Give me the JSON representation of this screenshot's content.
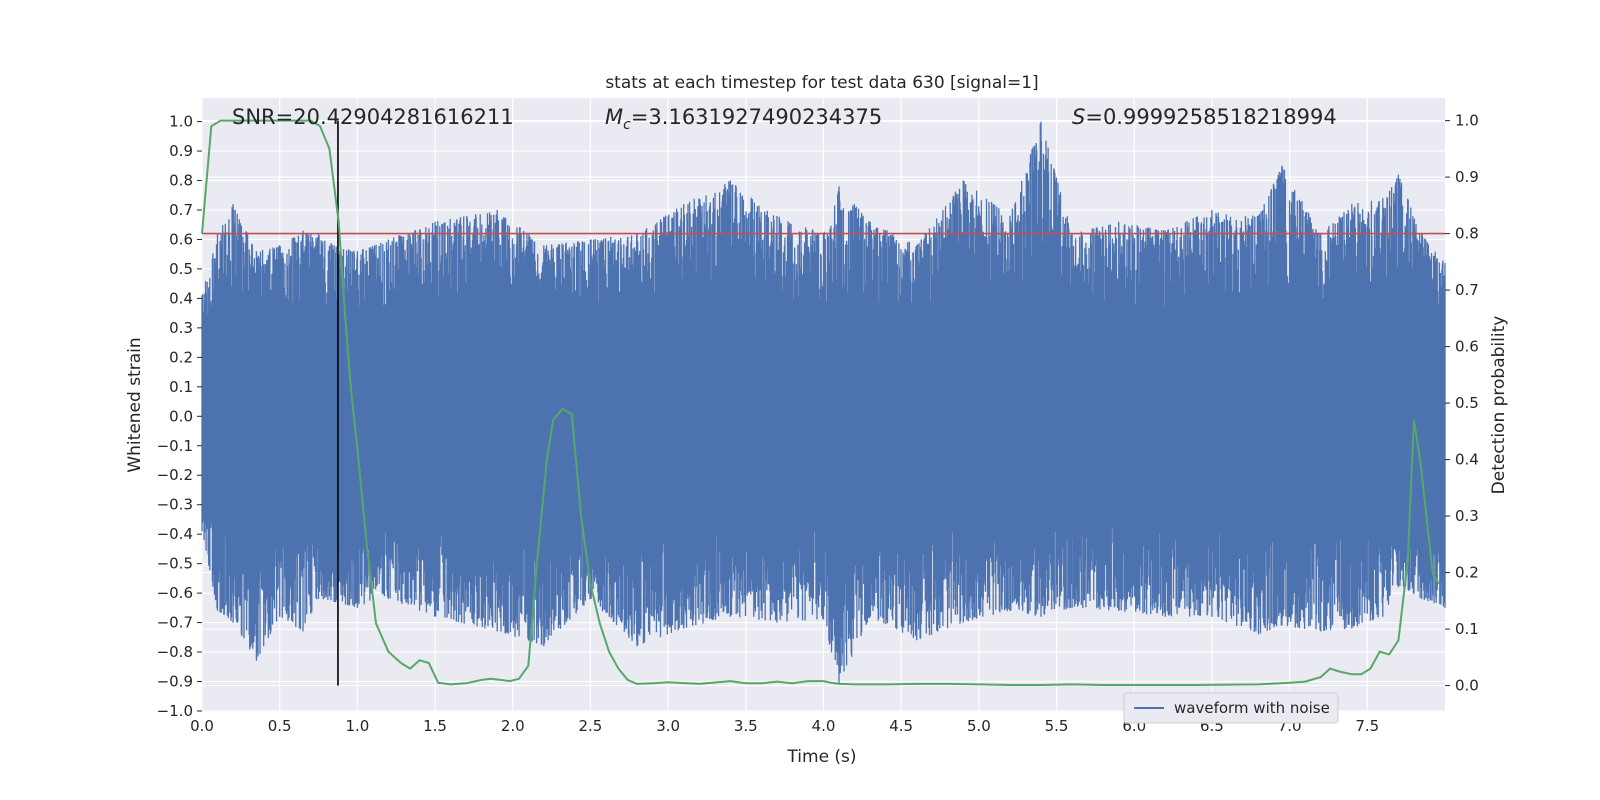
{
  "chart_data": {
    "type": "line",
    "title": "stats at each timestep for test data 630 [signal=1]",
    "xlabel": "Time (s)",
    "ylabel": "Whitened strain",
    "ylabel_right": "Detection probability",
    "xlim": [
      0.0,
      8.0
    ],
    "ylim": [
      -1.0,
      1.08
    ],
    "ylim_right": [
      -0.045,
      1.04
    ],
    "x_ticks": [
      "0.0",
      "0.5",
      "1.0",
      "1.5",
      "2.0",
      "2.5",
      "3.0",
      "3.5",
      "4.0",
      "4.5",
      "5.0",
      "5.5",
      "6.0",
      "6.5",
      "7.0",
      "7.5"
    ],
    "y_ticks": [
      "1.0",
      "0.9",
      "0.8",
      "0.7",
      "0.6",
      "0.5",
      "0.4",
      "0.3",
      "0.2",
      "0.1",
      "0.0",
      "−0.1",
      "−0.2",
      "−0.3",
      "−0.4",
      "−0.5",
      "−0.6",
      "−0.7",
      "−0.8",
      "−0.9",
      "−1.0"
    ],
    "y_right_ticks": [
      "1.0",
      "0.9",
      "0.8",
      "0.7",
      "0.6",
      "0.5",
      "0.4",
      "0.3",
      "0.2",
      "0.1",
      "0.0"
    ],
    "grid": true,
    "legend_position": "lower-right",
    "annotations": {
      "snr": "SNR=20.42904281616211",
      "mc_symbol": "M",
      "mc_sub": "c",
      "mc_value": "=3.1631927490234375",
      "s_symbol": "S",
      "s_value": "=0.9999258518218994"
    },
    "threshold_line": {
      "y_right": 0.8,
      "color": "#c44e52"
    },
    "marker_line": {
      "x": 0.875,
      "y_right_from": 0.0,
      "y_right_to": 1.0,
      "color": "#000000"
    },
    "series": [
      {
        "name": "waveform with noise",
        "axis": "left",
        "color": "#4c72b0",
        "envelope": {
          "x": [
            0.0,
            0.1,
            0.2,
            0.35,
            0.5,
            0.65,
            0.75,
            0.85,
            1.0,
            1.2,
            1.5,
            1.9,
            2.2,
            2.5,
            2.8,
            3.1,
            3.4,
            3.7,
            4.0,
            4.1,
            4.3,
            4.6,
            4.9,
            5.2,
            5.4,
            5.6,
            5.9,
            6.2,
            6.5,
            6.8,
            6.95,
            7.2,
            7.4,
            7.6,
            7.7,
            7.85,
            8.0
          ],
          "ymax": [
            0.41,
            0.62,
            0.72,
            0.56,
            0.58,
            0.63,
            0.62,
            0.58,
            0.56,
            0.6,
            0.66,
            0.7,
            0.58,
            0.6,
            0.62,
            0.72,
            0.8,
            0.68,
            0.62,
            0.78,
            0.66,
            0.58,
            0.8,
            0.68,
            1.0,
            0.62,
            0.66,
            0.63,
            0.7,
            0.68,
            0.85,
            0.62,
            0.72,
            0.74,
            0.82,
            0.62,
            0.52
          ],
          "ymin": [
            -0.39,
            -0.66,
            -0.7,
            -0.83,
            -0.68,
            -0.73,
            -0.62,
            -0.63,
            -0.65,
            -0.62,
            -0.68,
            -0.73,
            -0.78,
            -0.62,
            -0.78,
            -0.72,
            -0.68,
            -0.7,
            -0.69,
            -0.91,
            -0.68,
            -0.76,
            -0.7,
            -0.66,
            -0.68,
            -0.65,
            -0.66,
            -0.68,
            -0.68,
            -0.74,
            -0.71,
            -0.73,
            -0.72,
            -0.68,
            -0.58,
            -0.62,
            -0.65
          ]
        }
      },
      {
        "name": "",
        "axis": "right",
        "color": "#55a868",
        "x": [
          0.0,
          0.06,
          0.12,
          0.2,
          0.3,
          0.4,
          0.5,
          0.6,
          0.7,
          0.76,
          0.82,
          0.88,
          0.92,
          0.96,
          1.0,
          1.06,
          1.12,
          1.2,
          1.28,
          1.34,
          1.4,
          1.46,
          1.52,
          1.6,
          1.7,
          1.8,
          1.86,
          1.92,
          1.98,
          2.04,
          2.1,
          2.16,
          2.22,
          2.26,
          2.32,
          2.38,
          2.44,
          2.5,
          2.56,
          2.62,
          2.68,
          2.74,
          2.8,
          2.9,
          3.0,
          3.2,
          3.4,
          3.5,
          3.6,
          3.7,
          3.8,
          3.9,
          4.0,
          4.05,
          4.1,
          4.2,
          4.4,
          4.6,
          4.8,
          5.0,
          5.2,
          5.4,
          5.6,
          5.8,
          6.0,
          6.4,
          6.8,
          7.0,
          7.1,
          7.2,
          7.26,
          7.32,
          7.4,
          7.46,
          7.52,
          7.58,
          7.64,
          7.7,
          7.76,
          7.8,
          7.84,
          7.88,
          7.92,
          7.96
        ],
        "y": [
          0.8,
          0.99,
          1.0,
          1.0,
          1.0,
          1.0,
          1.0,
          1.0,
          1.0,
          0.99,
          0.95,
          0.82,
          0.66,
          0.52,
          0.42,
          0.25,
          0.11,
          0.06,
          0.04,
          0.03,
          0.045,
          0.04,
          0.005,
          0.002,
          0.004,
          0.01,
          0.012,
          0.01,
          0.008,
          0.012,
          0.035,
          0.23,
          0.4,
          0.47,
          0.49,
          0.48,
          0.3,
          0.18,
          0.11,
          0.06,
          0.03,
          0.01,
          0.003,
          0.004,
          0.006,
          0.003,
          0.008,
          0.004,
          0.004,
          0.007,
          0.004,
          0.008,
          0.008,
          0.005,
          0.003,
          0.002,
          0.002,
          0.003,
          0.003,
          0.002,
          0.001,
          0.001,
          0.002,
          0.001,
          0.001,
          0.001,
          0.002,
          0.005,
          0.007,
          0.015,
          0.03,
          0.025,
          0.02,
          0.02,
          0.03,
          0.06,
          0.055,
          0.08,
          0.22,
          0.47,
          0.4,
          0.3,
          0.2,
          0.18
        ]
      }
    ]
  }
}
